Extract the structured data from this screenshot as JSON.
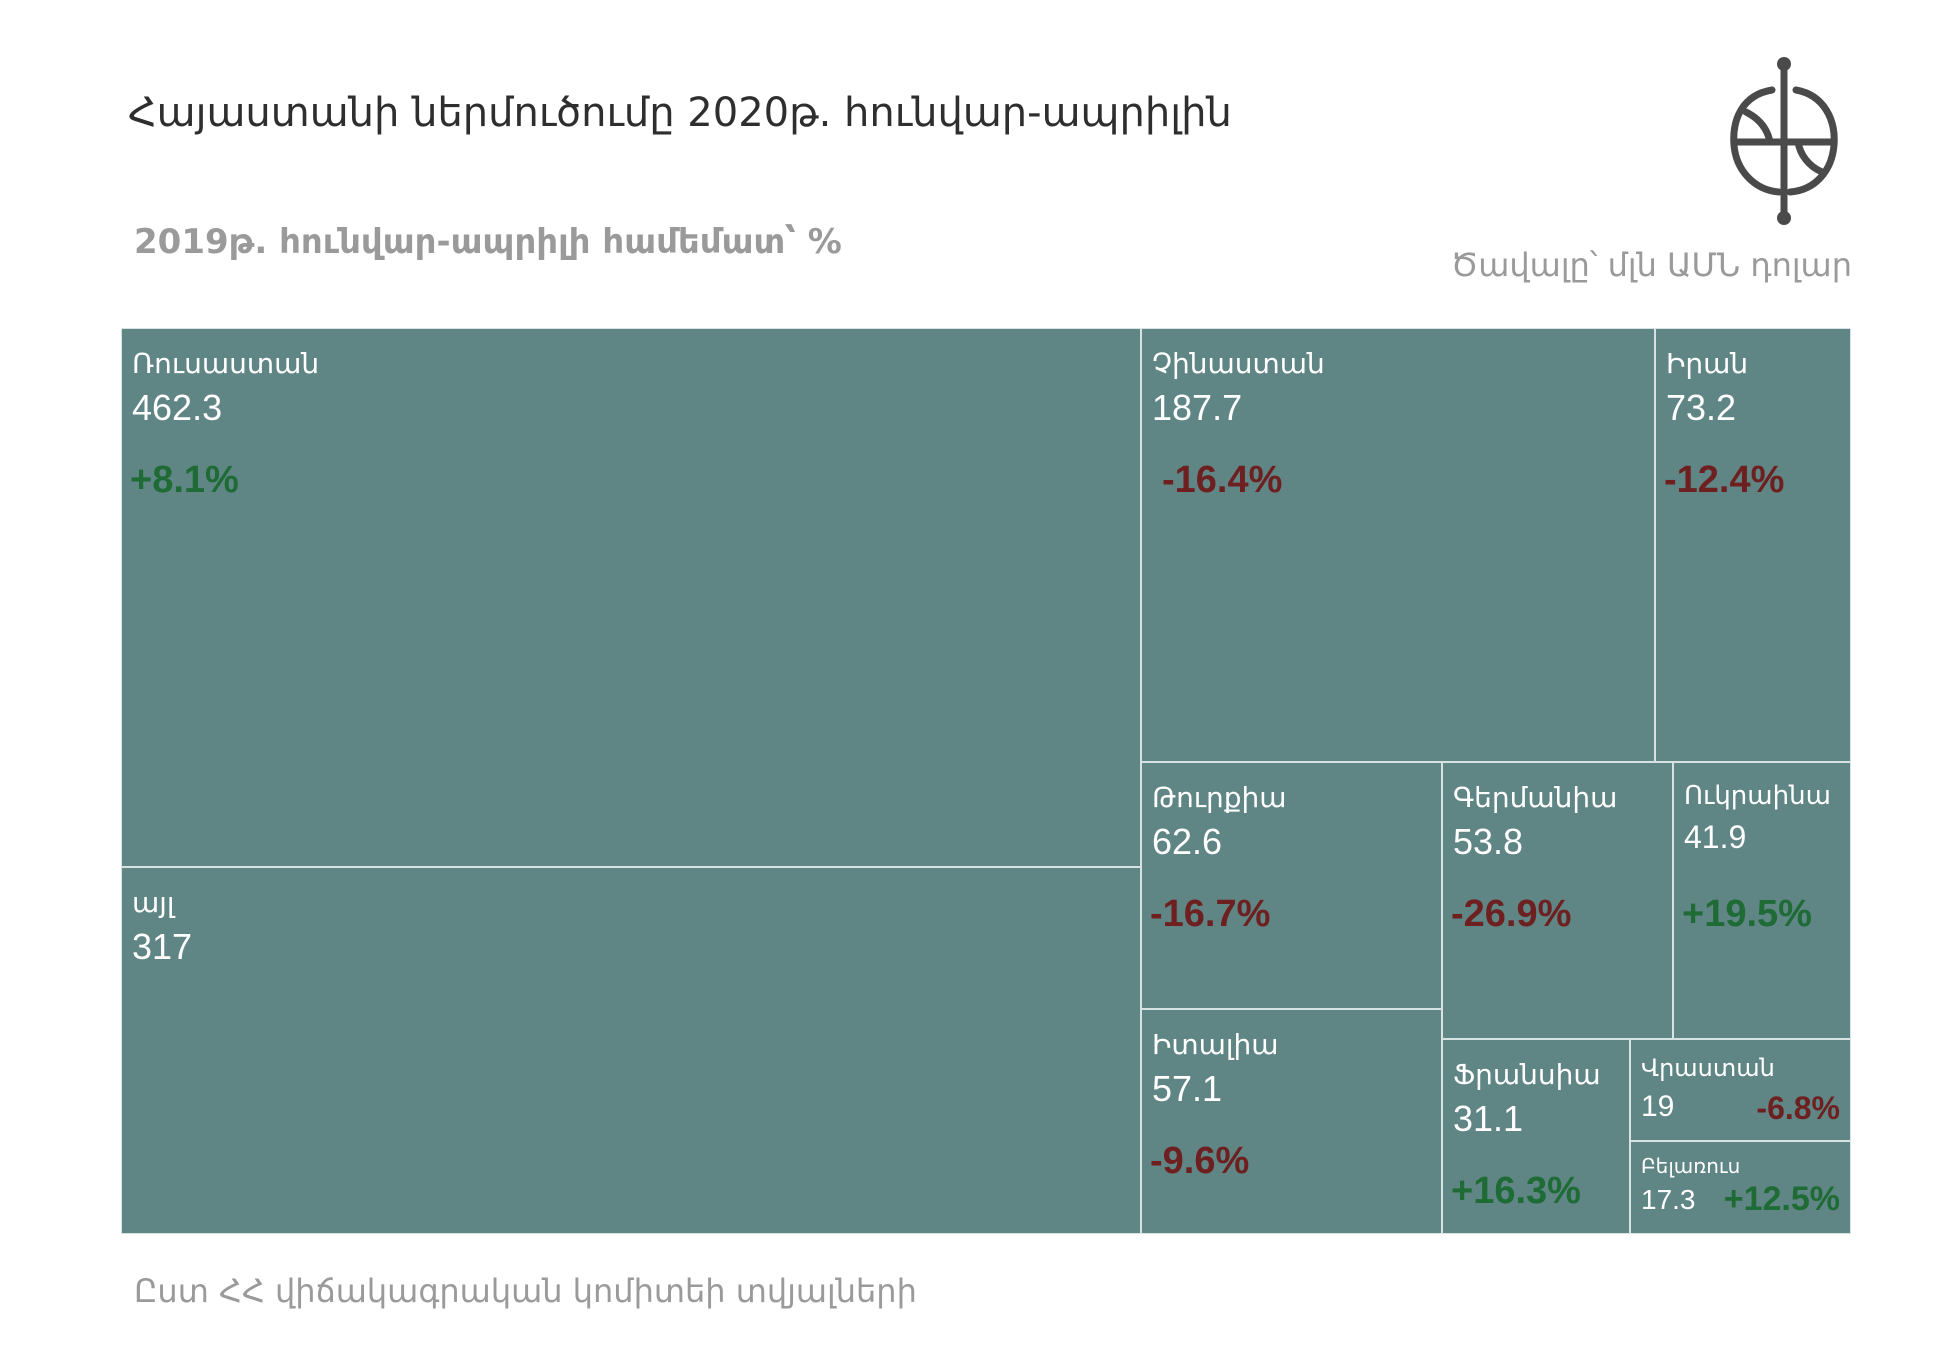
{
  "header": {
    "title": "Հայաստանի ներմուծումը 2020թ. հունվար-ապրիլին",
    "subtitle": "2019թ. հունվար-ապրիլի համեմատ՝ %",
    "unit": "Ծավալը՝ մլն ԱՄՆ դոլար"
  },
  "footer": {
    "source": "Ըստ ՀՀ վիճակագրական կոմիտեի տվյալների"
  },
  "colors": {
    "cell": "#5f8585",
    "positive": "#1e6b35",
    "negative": "#6e1f1f"
  },
  "chart_data": {
    "type": "treemap",
    "title": "Հայաստանի ներմուծումը 2020թ. հունվար-ապրիլին",
    "items": [
      {
        "name": "Ռուսաստան",
        "value": 462.3,
        "change": "+8.1%"
      },
      {
        "name": "այլ",
        "value": 317,
        "change": ""
      },
      {
        "name": "Չինաստան",
        "value": 187.7,
        "change": "-16.4%"
      },
      {
        "name": "Իրան",
        "value": 73.2,
        "change": "-12.4%"
      },
      {
        "name": "Թուրքիա",
        "value": 62.6,
        "change": "-16.7%"
      },
      {
        "name": "Իտալիա",
        "value": 57.1,
        "change": "-9.6%"
      },
      {
        "name": "Գերմանիա",
        "value": 53.8,
        "change": "-26.9%"
      },
      {
        "name": "Ուկրաինա",
        "value": 41.9,
        "change": "+19.5%"
      },
      {
        "name": "Ֆրանսիա",
        "value": 31.1,
        "change": "+16.3%"
      },
      {
        "name": "Վրաստան",
        "value": 19,
        "change": "-6.8%"
      },
      {
        "name": "Բելառուս",
        "value": 17.3,
        "change": "+12.5%"
      }
    ]
  }
}
